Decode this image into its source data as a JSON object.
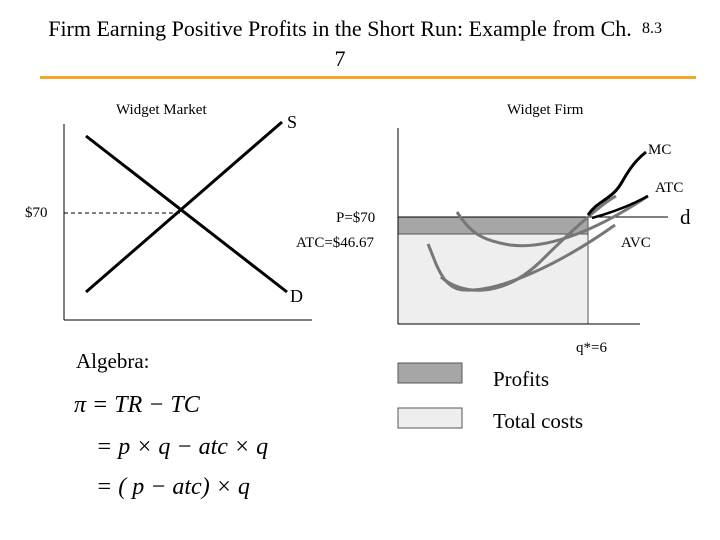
{
  "slide": {
    "title": "Firm Earning Positive Profits in the Short Run: Example from Ch. 7",
    "number": "8.3",
    "accent_color": "#f5a623"
  },
  "market": {
    "title": "Widget Market",
    "supply_label": "S",
    "demand_label": "D",
    "price_label": "$70"
  },
  "firm": {
    "title": "Widget Firm",
    "mc_label": "MC",
    "atc_label": "ATC",
    "avc_label": "AVC",
    "d_label": "d",
    "price_text": "P=$70",
    "atc_text": "ATC=$46.67",
    "q_label": "q*=6"
  },
  "legend": {
    "profits_label": "Profits",
    "profits_color": "#a6a6a6",
    "costs_label": "Total costs",
    "costs_color": "#eeeeee"
  },
  "algebra": {
    "label": "Algebra:",
    "line1": "π = TR − TC",
    "line2": "= p × q − atc × q",
    "line3": "= ( p − atc) × q"
  }
}
